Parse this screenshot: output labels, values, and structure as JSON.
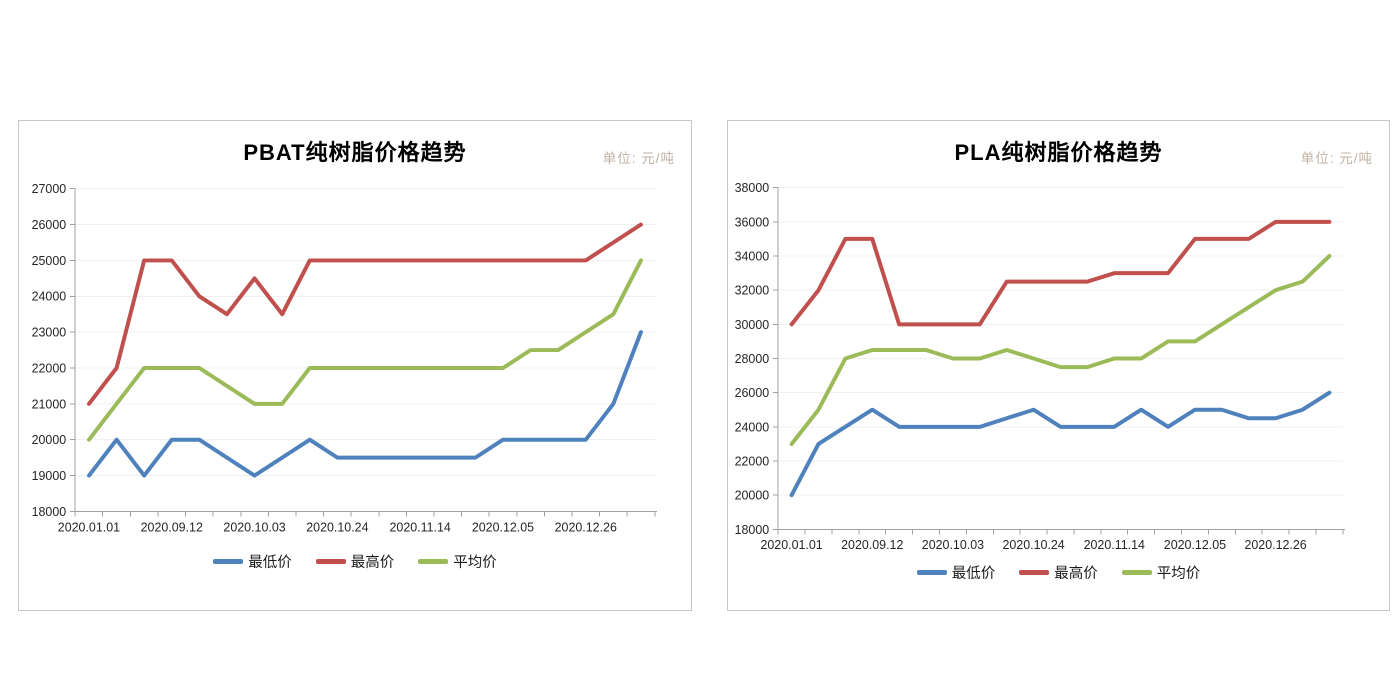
{
  "page": {
    "background": "#ffffff"
  },
  "chart_data": [
    {
      "type": "line",
      "title": "PBAT纯树脂价格趋势",
      "unit": "单位: 元/吨",
      "legend_position": "bottom",
      "grid": true,
      "y_axis": {
        "min": 18000,
        "max": 27000,
        "step": 1000,
        "tick_labels": [
          "18000",
          "19000",
          "20000",
          "21000",
          "22000",
          "23000",
          "24000",
          "25000",
          "26000",
          "27000"
        ]
      },
      "x_axis": {
        "num_points": 21,
        "labels": [
          "2020.01.01",
          "2020.09.12",
          "2020.10.03",
          "2020.10.24",
          "2020.11.14",
          "2020.12.05",
          "2020.12.26"
        ],
        "label_point_indices": [
          0,
          3,
          6,
          9,
          12,
          15,
          18
        ]
      },
      "series": [
        {
          "name": "最低价",
          "color": "#4F81BD",
          "values": [
            19000,
            20000,
            19000,
            20000,
            20000,
            19500,
            19000,
            19500,
            20000,
            19500,
            19500,
            19500,
            19500,
            19500,
            19500,
            20000,
            20000,
            20000,
            20000,
            21000,
            23000
          ]
        },
        {
          "name": "最高价",
          "color": "#C0504D",
          "values": [
            21000,
            22000,
            25000,
            25000,
            24000,
            23500,
            24500,
            23500,
            25000,
            25000,
            25000,
            25000,
            25000,
            25000,
            25000,
            25000,
            25000,
            25000,
            25000,
            25500,
            26000
          ]
        },
        {
          "name": "平均价",
          "color": "#9BBB59",
          "values": [
            20000,
            21000,
            22000,
            22000,
            22000,
            21500,
            21000,
            21000,
            22000,
            22000,
            22000,
            22000,
            22000,
            22000,
            22000,
            22000,
            22500,
            22500,
            23000,
            23500,
            25000
          ]
        }
      ]
    },
    {
      "type": "line",
      "title": "PLA纯树脂价格趋势",
      "unit": "单位: 元/吨",
      "legend_position": "bottom",
      "grid": true,
      "y_axis": {
        "min": 18000,
        "max": 38000,
        "step": 2000,
        "tick_labels": [
          "18000",
          "20000",
          "22000",
          "24000",
          "26000",
          "28000",
          "30000",
          "32000",
          "34000",
          "36000",
          "38000"
        ]
      },
      "x_axis": {
        "num_points": 21,
        "labels": [
          "2020.01.01",
          "2020.09.12",
          "2020.10.03",
          "2020.10.24",
          "2020.11.14",
          "2020.12.05",
          "2020.12.26"
        ],
        "label_point_indices": [
          0,
          3,
          6,
          9,
          12,
          15,
          18
        ]
      },
      "series": [
        {
          "name": "最低价",
          "color": "#4F81BD",
          "values": [
            20000,
            23000,
            24000,
            25000,
            24000,
            24000,
            24000,
            24000,
            24500,
            25000,
            24000,
            24000,
            24000,
            25000,
            24000,
            25000,
            25000,
            24500,
            24500,
            25000,
            26000
          ]
        },
        {
          "name": "最高价",
          "color": "#C0504D",
          "values": [
            30000,
            32000,
            35000,
            35000,
            30000,
            30000,
            30000,
            30000,
            32500,
            32500,
            32500,
            32500,
            33000,
            33000,
            33000,
            35000,
            35000,
            35000,
            36000,
            36000,
            36000
          ]
        },
        {
          "name": "平均价",
          "color": "#9BBB59",
          "values": [
            23000,
            25000,
            28000,
            28500,
            28500,
            28500,
            28000,
            28000,
            28500,
            28000,
            27500,
            27500,
            28000,
            28000,
            29000,
            29000,
            30000,
            31000,
            32000,
            32500,
            34000
          ]
        }
      ]
    }
  ],
  "colors": {
    "series_min": "#4F81BD",
    "series_max": "#C0504D",
    "series_avg": "#9BBB59",
    "gridline": "#f0f0f0",
    "axis": "#a0a0a0",
    "panel_border": "#c6c6c6",
    "unit_text": "#bfb2a3"
  }
}
